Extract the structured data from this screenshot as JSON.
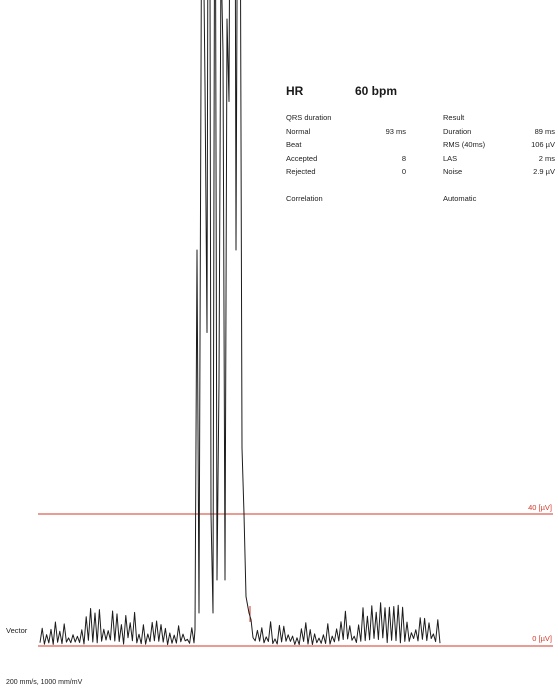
{
  "header": {
    "hr_label": "HR",
    "hr_value": "60 bpm"
  },
  "left_panel": {
    "qrs_title": "QRS duration",
    "rows": [
      {
        "label": "Normal",
        "value": "93 ms"
      },
      {
        "label": "Beat",
        "value": ""
      },
      {
        "label": "Accepted",
        "value": "8"
      },
      {
        "label": "Rejected",
        "value": "0"
      }
    ],
    "correlation": "Correlation"
  },
  "right_panel": {
    "result_title": "Result",
    "rows": [
      {
        "label": "Duration",
        "value": "89 ms"
      },
      {
        "label": "RMS (40ms)",
        "value": "106 µV"
      },
      {
        "label": "LAS",
        "value": "2 ms"
      },
      {
        "label": "Noise",
        "value": "2.9 µV"
      }
    ],
    "mode": "Automatic"
  },
  "chart_data": {
    "type": "line",
    "series_label": "Vector",
    "reference_lines": [
      {
        "label": "40 [µV]",
        "value": 40,
        "color": "#d23a2a"
      },
      {
        "label": "0 [µV]",
        "value": 0,
        "color": "#d23a2a"
      }
    ],
    "qrs_duration_ms": 89,
    "ylim": [
      0,
      370
    ],
    "footer": "200 mm/s, 1000 mm/mV"
  },
  "colors": {
    "trace": "#1c1c1c",
    "reference": "#d23a2a"
  }
}
